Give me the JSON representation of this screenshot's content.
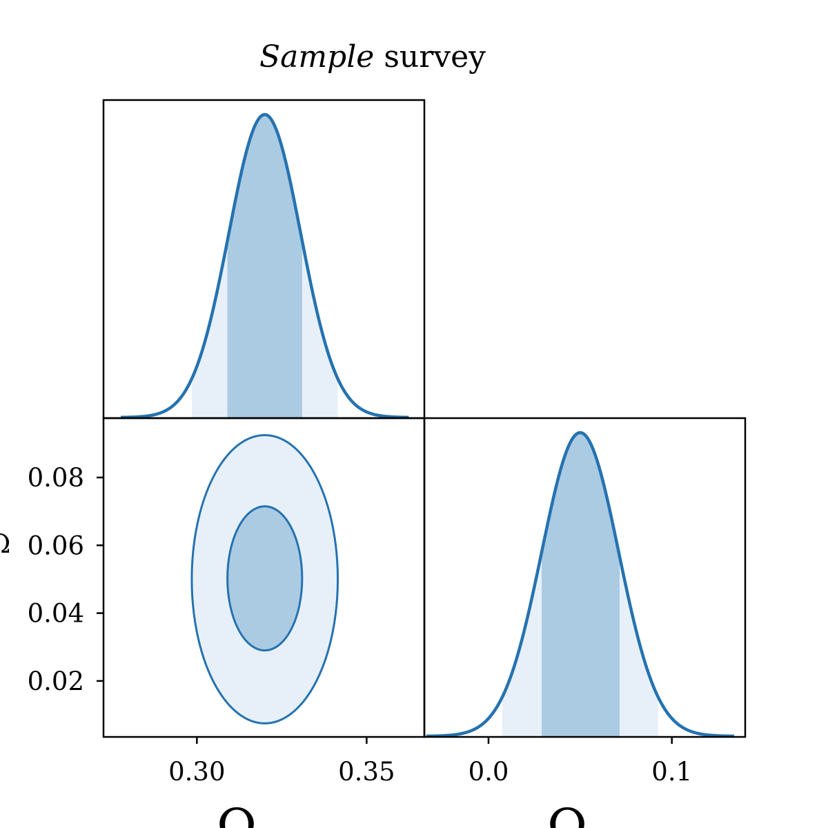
{
  "title": {
    "italic": "Sample",
    "rest": " survey"
  },
  "chart_data": {
    "type": "corner",
    "title": "Sample survey",
    "colors": {
      "line": "#2572b0",
      "inner_fill": "#abcbe3",
      "outer_fill": "#e7f0f8"
    },
    "parameters": [
      {
        "name": "x-parameter",
        "label": "Ω",
        "mean": 0.32,
        "sigma": 0.0106,
        "range": [
          0.2725,
          0.367
        ],
        "ticks": [
          "0.30",
          "0.35"
        ],
        "tick_values": [
          0.3,
          0.35
        ]
      },
      {
        "name": "y-parameter",
        "label": "Ω",
        "mean": 0.05,
        "sigma": 0.021,
        "range": [
          -0.035,
          0.14
        ],
        "ticks": [
          "0.0",
          "0.1"
        ],
        "tick_values": [
          0.0,
          0.1
        ]
      }
    ],
    "panel_2d": {
      "y_ticks": [
        "0.08",
        "0.06",
        "0.04",
        "0.02"
      ],
      "y_tick_values": [
        0.08,
        0.06,
        0.04,
        0.02
      ],
      "y_range": [
        0.0035,
        0.0975
      ],
      "contours": [
        {
          "level": "1σ",
          "x_range": [
            0.309,
            0.331
          ],
          "y_range": [
            0.029,
            0.0715
          ]
        },
        {
          "level": "2σ",
          "x_range": [
            0.2985,
            0.3415
          ],
          "y_range": [
            0.0075,
            0.0925
          ]
        }
      ]
    },
    "marginal_x": {
      "inner_band": [
        0.309,
        0.331
      ],
      "outer_band": [
        0.2985,
        0.3415
      ]
    },
    "marginal_y": {
      "inner_band": [
        0.029,
        0.0715
      ],
      "outer_band": [
        0.0075,
        0.0925
      ]
    }
  }
}
